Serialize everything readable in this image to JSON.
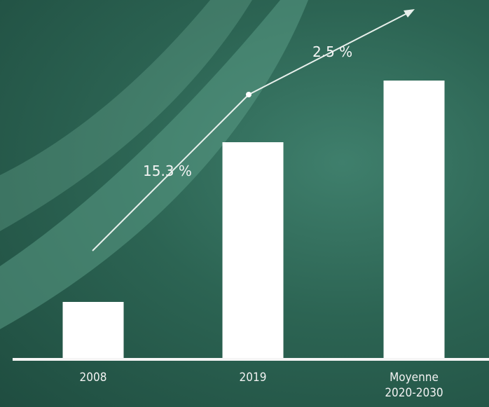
{
  "chart_data": {
    "type": "bar",
    "categories": [
      "2008",
      "2019",
      "Moyenne\n2020-2030"
    ],
    "values": [
      80,
      308,
      396
    ],
    "color": "#ffffff",
    "ylim": [
      0,
      420
    ],
    "annotations": [
      "15.3 %",
      "2.5 %"
    ]
  }
}
